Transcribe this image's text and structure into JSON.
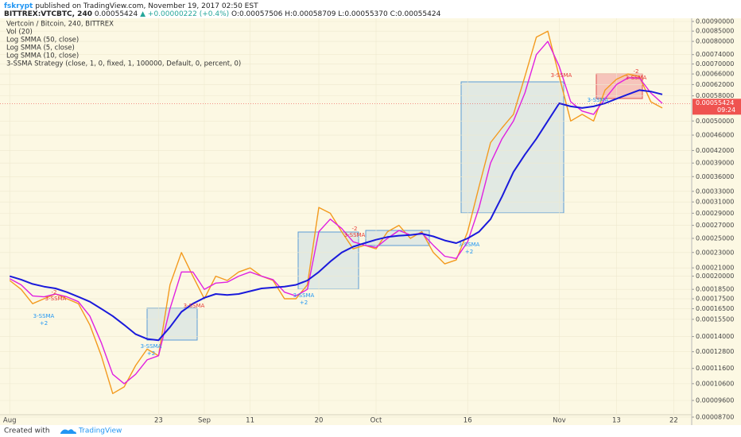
{
  "header": {
    "author": "fskrypt",
    "published": "published on TradingView.com, November 19, 2017 02:50 EST",
    "symbol": "BITTREX:VTCBTC, 240",
    "last": "0.00055424",
    "change": "▲ +0.00000222 (+0.4%)",
    "ohlc": "O:0.00057506 H:0.00058709 L:0.00055370 C:0.00055424"
  },
  "footer": {
    "created": "Created with",
    "brand": "TradingView"
  },
  "chart_data": {
    "type": "line",
    "title": "Vertcoin / Bitcoin, 240, BITTREX",
    "indicators": [
      "Vol (20)",
      "3-SSMA Strategy (close, 1, 0, fixed, 1, 100000, Default, 0, percent, 0)"
    ],
    "log_scale": true,
    "grid": true,
    "categories": [
      "Aug",
      null,
      null,
      null,
      null,
      null,
      null,
      null,
      null,
      null,
      null,
      null,
      null,
      "23",
      null,
      null,
      null,
      "Sep",
      null,
      null,
      null,
      "11",
      null,
      null,
      null,
      null,
      null,
      "20",
      null,
      null,
      null,
      null,
      "Oct",
      null,
      null,
      null,
      null,
      null,
      null,
      null,
      "16",
      null,
      null,
      null,
      null,
      null,
      null,
      null,
      "Nov",
      null,
      null,
      null,
      null,
      "13",
      null,
      null,
      null,
      null,
      "22",
      null
    ],
    "series": [
      {
        "name": "Log SMMA (50, close)",
        "color": "#1a1adb",
        "values": [
          0.0002,
          0.000196,
          0.000191,
          0.000188,
          0.000186,
          0.000182,
          0.000177,
          0.000172,
          0.000165,
          0.000158,
          0.00015,
          0.000142,
          0.000138,
          0.000137,
          0.000148,
          0.000162,
          0.00017,
          0.000176,
          0.00018,
          0.000179,
          0.00018,
          0.000183,
          0.000186,
          0.000187,
          0.000188,
          0.00019,
          0.000195,
          0.000205,
          0.000218,
          0.00023,
          0.000238,
          0.000243,
          0.000248,
          0.000252,
          0.000254,
          0.000255,
          0.000257,
          0.000253,
          0.000247,
          0.000243,
          0.00025,
          0.00026,
          0.00028,
          0.00032,
          0.00037,
          0.00041,
          0.00045,
          0.0005,
          0.000555,
          0.000545,
          0.00054,
          0.000545,
          0.000555,
          0.00057,
          0.000585,
          0.0006,
          0.000595,
          0.000585,
          null,
          null
        ]
      },
      {
        "name": "Log SMMA (5, close)",
        "color": "#f39a1e",
        "values": [
          0.000195,
          0.000185,
          0.00017,
          0.000175,
          0.00018,
          0.000175,
          0.00017,
          0.00015,
          0.000125,
          0.0001,
          0.000104,
          0.000118,
          0.00013,
          0.000125,
          0.00019,
          0.00023,
          0.0002,
          0.000175,
          0.0002,
          0.000195,
          0.000205,
          0.00021,
          0.0002,
          0.000195,
          0.000175,
          0.000175,
          0.00019,
          0.0003,
          0.00029,
          0.00026,
          0.000235,
          0.00024,
          0.000235,
          0.00026,
          0.00027,
          0.00025,
          0.00026,
          0.00023,
          0.000215,
          0.00022,
          0.00026,
          0.00034,
          0.00044,
          0.00048,
          0.00052,
          0.00065,
          0.00082,
          0.00085,
          0.00065,
          0.0005,
          0.00052,
          0.0005,
          0.0006,
          0.00064,
          0.00066,
          0.00065,
          0.00056,
          0.00054,
          null,
          null
        ]
      },
      {
        "name": "Log SMMA (10, close)",
        "color": "#e020e0",
        "values": [
          0.000197,
          0.00019,
          0.000178,
          0.000177,
          0.00018,
          0.000177,
          0.000172,
          0.000158,
          0.000135,
          0.000112,
          0.000106,
          0.000112,
          0.000122,
          0.000125,
          0.000165,
          0.000205,
          0.000205,
          0.000185,
          0.000192,
          0.000193,
          0.0002,
          0.000205,
          0.0002,
          0.000196,
          0.000182,
          0.000178,
          0.000185,
          0.00026,
          0.00028,
          0.000265,
          0.000245,
          0.00024,
          0.000237,
          0.00025,
          0.000262,
          0.000255,
          0.000258,
          0.00024,
          0.000225,
          0.000222,
          0.000245,
          0.0003,
          0.00039,
          0.00045,
          0.0005,
          0.00059,
          0.00074,
          0.0008,
          0.00069,
          0.00056,
          0.00053,
          0.00052,
          0.00057,
          0.00062,
          0.000645,
          0.000645,
          0.00059,
          0.000555,
          null,
          null
        ]
      }
    ],
    "ylim": [
      8.3e-05,
      0.00093
    ],
    "yticks": [
      {
        "value": 0.0009,
        "label": "0.00090000"
      },
      {
        "value": 0.00085,
        "label": "0.00085000"
      },
      {
        "value": 0.0008,
        "label": "0.00080000"
      },
      {
        "value": 0.00074,
        "label": "0.00074000"
      },
      {
        "value": 0.0007,
        "label": "0.00070000"
      },
      {
        "value": 0.00066,
        "label": "0.00066000"
      },
      {
        "value": 0.00062,
        "label": "0.00062000"
      },
      {
        "value": 0.00058,
        "label": "0.00058000"
      },
      {
        "value": 0.0005,
        "label": "0.00050000"
      },
      {
        "value": 0.00046,
        "label": "0.00046000"
      },
      {
        "value": 0.00042,
        "label": "0.00042000"
      },
      {
        "value": 0.00039,
        "label": "0.00039000"
      },
      {
        "value": 0.00036,
        "label": "0.00036000"
      },
      {
        "value": 0.00033,
        "label": "0.00033000"
      },
      {
        "value": 0.00031,
        "label": "0.00031000"
      },
      {
        "value": 0.00029,
        "label": "0.00029000"
      },
      {
        "value": 0.00027,
        "label": "0.00027000"
      },
      {
        "value": 0.00025,
        "label": "0.00025000"
      },
      {
        "value": 0.00023,
        "label": "0.00023000"
      },
      {
        "value": 0.00021,
        "label": "0.00021000"
      },
      {
        "value": 0.0002,
        "label": "0.00020000"
      },
      {
        "value": 0.000185,
        "label": "0.00018500"
      },
      {
        "value": 0.000175,
        "label": "0.00017500"
      },
      {
        "value": 0.000165,
        "label": "0.00016500"
      },
      {
        "value": 0.000155,
        "label": "0.00015500"
      },
      {
        "value": 0.00014,
        "label": "0.00014000"
      },
      {
        "value": 0.000128,
        "label": "0.00012800"
      },
      {
        "value": 0.000116,
        "label": "0.00011600"
      },
      {
        "value": 0.000106,
        "label": "0.00010600"
      },
      {
        "value": 9.6e-05,
        "label": "0.00009600"
      },
      {
        "value": 8.7e-05,
        "label": "0.00008700"
      }
    ],
    "last_price": {
      "value": 0.00055424,
      "label": "0.00055424",
      "countdown": "09:24",
      "color": "#ef5350"
    },
    "annotations": [
      "3-SSMA",
      "+2",
      "-2",
      "3-SSMA",
      "3-SSMA",
      "+2",
      "3-SSMA",
      "3-SSMA",
      "+2",
      "-2",
      "3-SSMA",
      "3-SSMA",
      "+2",
      "3-SSMA",
      "3-SSMA",
      "-2",
      "3-SSMA"
    ]
  }
}
